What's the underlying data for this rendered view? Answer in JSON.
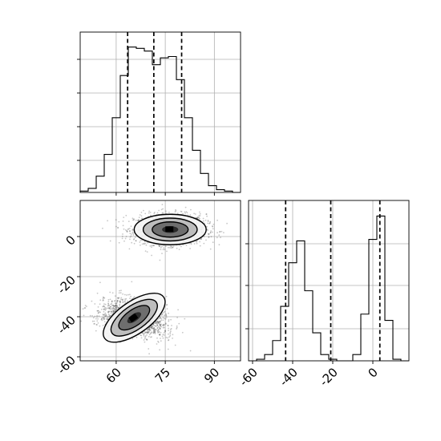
{
  "chart_data": [
    {
      "id": "hist-x",
      "type": "histogram",
      "title": "",
      "xlabel": "",
      "ylabel": "",
      "xlim": [
        49,
        98
      ],
      "xticks": [
        60,
        75,
        90
      ],
      "ylim": [
        0,
        1.18
      ],
      "grid": true,
      "bin_edges": [
        49,
        51.45,
        53.9,
        56.35,
        58.8,
        61.25,
        63.7,
        66.15,
        68.6,
        71.05,
        73.5,
        75.95,
        78.4,
        80.85,
        83.3,
        85.75,
        88.2,
        90.65,
        93.1,
        95.55,
        98
      ],
      "values": [
        0.01,
        0.03,
        0.12,
        0.28,
        0.55,
        0.86,
        1.07,
        1.06,
        1.04,
        0.94,
        0.99,
        1.0,
        0.83,
        0.55,
        0.31,
        0.14,
        0.05,
        0.02,
        0.01,
        0.0
      ],
      "quantiles": [
        63.5,
        71.5,
        80.0
      ]
    },
    {
      "id": "hist-y",
      "type": "histogram",
      "title": "",
      "xlabel": "",
      "ylabel": "",
      "xlim": [
        -62,
        18
      ],
      "xticks": [
        -60,
        -40,
        -20,
        0
      ],
      "ylim": [
        0,
        1.03
      ],
      "grid": true,
      "bin_edges": [
        -62,
        -58,
        -54,
        -50,
        -46,
        -42,
        -38,
        -34,
        -30,
        -26,
        -22,
        -18,
        -14,
        -10,
        -6,
        -2,
        2,
        6,
        10,
        14,
        18
      ],
      "values": [
        0.0,
        0.01,
        0.04,
        0.13,
        0.35,
        0.63,
        0.77,
        0.45,
        0.18,
        0.04,
        0.01,
        0.0,
        0.0,
        0.04,
        0.3,
        0.78,
        0.93,
        0.26,
        0.01,
        0.0
      ],
      "quantiles": [
        -43.5,
        -21.0,
        3.5
      ]
    },
    {
      "id": "density-2d",
      "type": "scatter",
      "title": "",
      "xlabel": "",
      "ylabel": "",
      "xlim": [
        49,
        98
      ],
      "ylim": [
        -62,
        18
      ],
      "xticks": [
        60,
        75,
        90
      ],
      "yticks": [
        -60,
        -40,
        -20,
        0
      ],
      "grid": true,
      "clusters": [
        {
          "center_x": 76.5,
          "center_y": 3.5,
          "spread_x": 5.5,
          "spread_y": 3.8,
          "rotation_deg": 0
        },
        {
          "center_x": 65.5,
          "center_y": -40.5,
          "spread_x": 5.5,
          "spread_y": 4.0,
          "rotation_deg": -35
        }
      ],
      "contour_levels": [
        0.39,
        0.86,
        1.39
      ]
    }
  ]
}
